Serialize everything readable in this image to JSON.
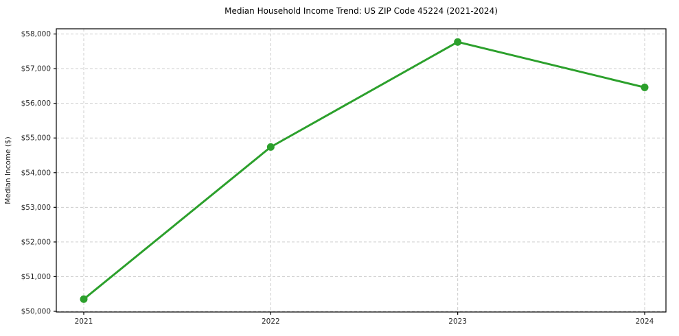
{
  "chart_data": {
    "type": "line",
    "title": "Median Household Income Trend: US ZIP Code 45224 (2021-2024)",
    "xlabel": "",
    "ylabel": "Median Income ($)",
    "categories": [
      "2021",
      "2022",
      "2023",
      "2024"
    ],
    "series": [
      {
        "name": "Median Household Income",
        "values": [
          50350,
          54740,
          57770,
          56460
        ],
        "color": "#2ca02c",
        "marker": "circle"
      }
    ],
    "ylim": [
      49980,
      58150
    ],
    "yticks": [
      50000,
      51000,
      52000,
      53000,
      54000,
      55000,
      56000,
      57000,
      58000
    ],
    "ytick_labels": [
      "$50,000",
      "$51,000",
      "$52,000",
      "$53,000",
      "$54,000",
      "$55,000",
      "$56,000",
      "$57,000",
      "$58,000"
    ],
    "grid": true,
    "grid_style": "dashed",
    "legend": "none",
    "colors": {
      "line": "#2ca02c",
      "grid": "#cccccc",
      "spine": "#000000",
      "tick_label": "#262626",
      "title": "#000000",
      "background": "#ffffff"
    }
  }
}
